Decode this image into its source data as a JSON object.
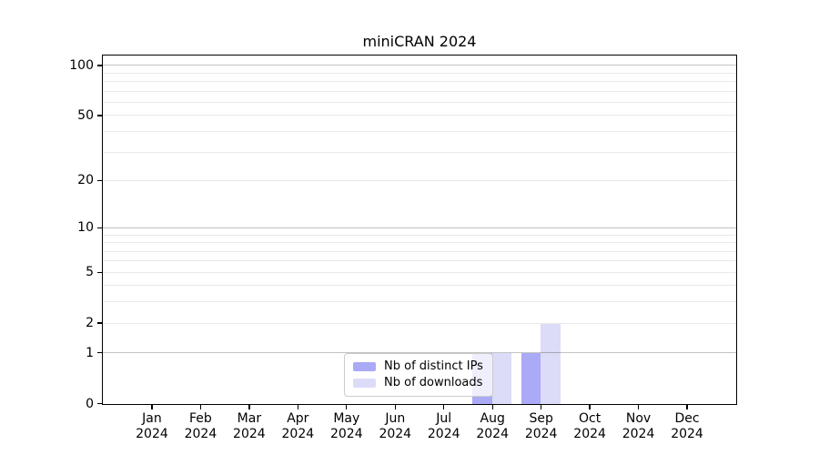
{
  "chart_data": {
    "type": "bar",
    "title": "miniCRAN 2024",
    "categories": [
      "Jan",
      "Feb",
      "Mar",
      "Apr",
      "May",
      "Jun",
      "Jul",
      "Aug",
      "Sep",
      "Oct",
      "Nov",
      "Dec"
    ],
    "category_year_line": "2024",
    "series": [
      {
        "name": "Nb of distinct IPs",
        "color": "#aaaaf6",
        "values": [
          0,
          0,
          0,
          0,
          0,
          0,
          0,
          1,
          1,
          0,
          0,
          0
        ]
      },
      {
        "name": "Nb of downloads",
        "color": "#dcdcf8",
        "values": [
          0,
          0,
          0,
          0,
          0,
          0,
          0,
          1,
          2,
          0,
          0,
          0
        ]
      }
    ],
    "yscale": "log1p",
    "ylim": [
      0,
      114
    ],
    "yticks": [
      0,
      1,
      2,
      5,
      10,
      20,
      50,
      100
    ],
    "grid": {
      "on": true,
      "major_lines": [
        1,
        10,
        100
      ],
      "minor_lines": [
        2,
        3,
        4,
        5,
        6,
        7,
        8,
        9,
        20,
        30,
        40,
        50,
        60,
        70,
        80,
        90
      ]
    },
    "legend": {
      "position": "lower center"
    },
    "xlabel": "",
    "ylabel": ""
  },
  "colors": {
    "background": "#ffffff",
    "spine": "#000000",
    "text": "#000000",
    "grid_major": "#c2c2c2",
    "grid_minor": "#ebebeb",
    "legend_border": "#cccccc",
    "bar_distinct_ips": "#aaaaf6",
    "bar_downloads": "#dcdcf8"
  }
}
